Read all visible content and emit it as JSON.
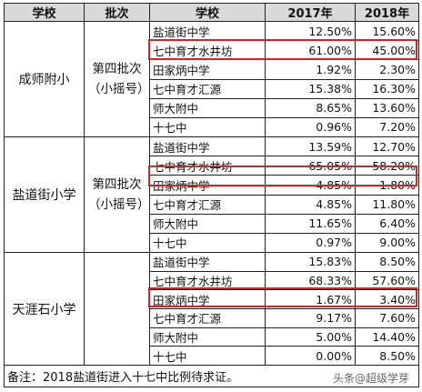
{
  "headers": [
    "学校",
    "批次",
    "学校",
    "2017年",
    "2018年"
  ],
  "groups": [
    {
      "school": "成师附小",
      "batch": "第四批次（小摇号）",
      "rows": [
        {
          "name": "盐道街中学",
          "y2017": "12.50%",
          "y2018": "15.60%"
        },
        {
          "name": "七中育才水井坊",
          "y2017": "61.00%",
          "y2018": "45.00%"
        },
        {
          "name": "田家炳中学",
          "y2017": "1.92%",
          "y2018": "2.30%"
        },
        {
          "name": "七中育才汇源",
          "y2017": "15.38%",
          "y2018": "16.30%"
        },
        {
          "name": "师大附中",
          "y2017": "8.65%",
          "y2018": "13.60%"
        },
        {
          "name": "十七中",
          "y2017": "0.96%",
          "y2018": "7.20%"
        }
      ]
    },
    {
      "school": "盐道街小学",
      "batch": "第四批次（小摇号）",
      "rows": [
        {
          "name": "盐道街中学",
          "y2017": "13.59%",
          "y2018": "12.70%"
        },
        {
          "name": "七中育才水井坊",
          "y2017": "65.05%",
          "y2018": "58.20%"
        },
        {
          "name": "田家炳中学",
          "y2017": "4.85%",
          "y2018": "1.80%"
        },
        {
          "name": "七中育才汇源",
          "y2017": "4.85%",
          "y2018": "11.80%"
        },
        {
          "name": "师大附中",
          "y2017": "11.65%",
          "y2018": "6.40%"
        },
        {
          "name": "十七中",
          "y2017": "0.97%",
          "y2018": "9.00%"
        }
      ]
    },
    {
      "school": "天涯石小学",
      "batch": "",
      "rows": [
        {
          "name": "盐道街中学",
          "y2017": "15.83%",
          "y2018": "8.50%"
        },
        {
          "name": "七中育才水井坊",
          "y2017": "68.33%",
          "y2018": "57.60%"
        },
        {
          "name": "田家炳中学",
          "y2017": "1.67%",
          "y2018": "3.40%"
        },
        {
          "name": "七中育才汇源",
          "y2017": "9.17%",
          "y2018": "7.60%"
        },
        {
          "name": "师大附中",
          "y2017": "5.00%",
          "y2018": "14.40%"
        },
        {
          "name": "十七中",
          "y2017": "0.00%",
          "y2018": "8.50%"
        }
      ]
    }
  ],
  "note": "备注：2018盐道街进入十七中比例待求证。",
  "watermark": "头条@超级学芽",
  "highlight_color": "#cc2a2a"
}
